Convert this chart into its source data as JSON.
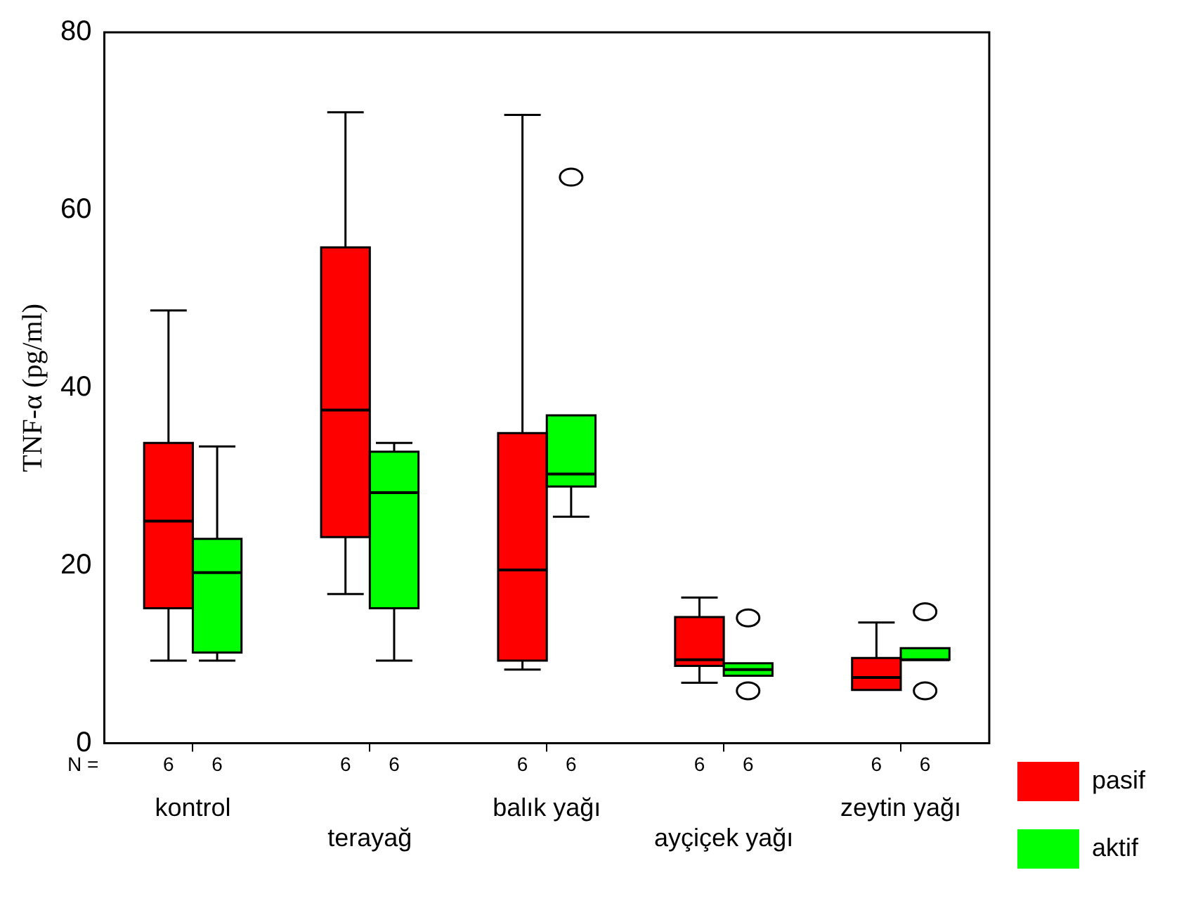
{
  "chart_data": {
    "type": "box",
    "ylabel": "TNF-α (pg/ml)",
    "categories": [
      "kontrol",
      "terayağ",
      "balık yağı",
      "ayçiçek yağı",
      "zeytin yağı"
    ],
    "series": [
      {
        "name": "pasif",
        "color": "#ff0000",
        "boxes": [
          {
            "low": 9.3,
            "q1": 15.2,
            "median": 25.0,
            "q3": 33.8,
            "high": 48.7
          },
          {
            "low": 16.8,
            "q1": 23.2,
            "median": 37.5,
            "q3": 55.8,
            "high": 71
          },
          {
            "low": 8.3,
            "q1": 9.3,
            "median": 19.5,
            "q3": 34.9,
            "high": 70.7
          },
          {
            "low": 6.8,
            "q1": 8.7,
            "median": 9.4,
            "q3": 14.2,
            "high": 16.4
          },
          {
            "low": 6.0,
            "q1": 6.0,
            "median": 7.4,
            "q3": 9.6,
            "high": 13.6
          }
        ]
      },
      {
        "name": "aktif",
        "color": "#00ff00",
        "boxes": [
          {
            "low": 9.3,
            "q1": 10.2,
            "median": 19.2,
            "q3": 23.0,
            "high": 33.4
          },
          {
            "low": 9.3,
            "q1": 15.2,
            "median": 28.2,
            "q3": 32.8,
            "high": 33.8
          },
          {
            "low": 25.5,
            "q1": 28.9,
            "median": 30.3,
            "q3": 36.9,
            "high": 36.9,
            "outliers": [
              63.7
            ]
          },
          {
            "low": 7.6,
            "q1": 7.6,
            "median": 8.3,
            "q3": 9.0,
            "high": 9.0,
            "outliers": [
              14.1,
              5.9
            ]
          },
          {
            "low": 9.4,
            "q1": 9.4,
            "median": 9.4,
            "q3": 10.7,
            "high": 10.7,
            "outliers": [
              14.8,
              5.9
            ]
          }
        ]
      }
    ],
    "ylim": [
      0,
      80
    ],
    "yticks": [
      0,
      20,
      40,
      60,
      80
    ],
    "legend": "right",
    "annotations": [
      "N =",
      "6",
      "6",
      "6",
      "6",
      "6",
      "6",
      "6",
      "6",
      "6",
      "6"
    ]
  }
}
